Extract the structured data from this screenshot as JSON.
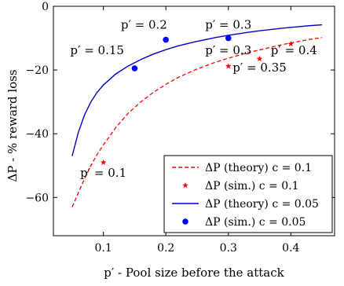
{
  "chart_data": {
    "type": "line",
    "xlabel": "p′ - Pool size before the attack",
    "ylabel": "ΔP - % reward loss",
    "xlim": [
      0.02,
      0.47
    ],
    "ylim": [
      -72,
      0
    ],
    "x_ticks": [
      0.1,
      0.2,
      0.3,
      0.4
    ],
    "x_tick_labels": [
      "0.1",
      "0.2",
      "0.3",
      "0.4"
    ],
    "y_ticks": [
      0,
      -20,
      -40,
      -60
    ],
    "y_tick_labels": [
      "0",
      "−20",
      "−40",
      "−60"
    ],
    "grid": false,
    "legend_position": "bottom-right",
    "series": [
      {
        "name": "ΔP (theory) c = 0.1",
        "kind": "line",
        "style": "dashed",
        "color": "#ff0000",
        "x": [
          0.05,
          0.06,
          0.07,
          0.08,
          0.09,
          0.1,
          0.12,
          0.14,
          0.16,
          0.18,
          0.2,
          0.22,
          0.25,
          0.28,
          0.3,
          0.33,
          0.35,
          0.38,
          0.4,
          0.43,
          0.45
        ],
        "y": [
          -63,
          -58.5,
          -54,
          -50,
          -46.5,
          -43.5,
          -38,
          -33.5,
          -30,
          -27,
          -24.5,
          -22.3,
          -19.7,
          -17.5,
          -16.3,
          -14.6,
          -13.7,
          -12.3,
          -11.5,
          -10.4,
          -9.8
        ]
      },
      {
        "name": "ΔP (sim.) c = 0.1",
        "kind": "scatter",
        "marker": "star",
        "color": "#ff0000",
        "x": [
          0.1,
          0.3,
          0.35,
          0.4
        ],
        "y": [
          -49,
          -18.8,
          -16.5,
          -11.8
        ]
      },
      {
        "name": "ΔP (theory) c = 0.05",
        "kind": "line",
        "style": "solid",
        "color": "#0000cc",
        "x": [
          0.05,
          0.06,
          0.07,
          0.08,
          0.09,
          0.1,
          0.12,
          0.14,
          0.16,
          0.18,
          0.2,
          0.22,
          0.25,
          0.28,
          0.3,
          0.33,
          0.35,
          0.38,
          0.4,
          0.43,
          0.45
        ],
        "y": [
          -47,
          -39.5,
          -34,
          -30,
          -27,
          -24.7,
          -21.2,
          -18.7,
          -16.7,
          -15,
          -13.6,
          -12.4,
          -11,
          -9.8,
          -9.1,
          -8.2,
          -7.7,
          -7,
          -6.6,
          -6.1,
          -5.8
        ]
      },
      {
        "name": "ΔP (sim.) c = 0.05",
        "kind": "scatter",
        "marker": "circle",
        "color": "#0000ff",
        "x": [
          0.15,
          0.2,
          0.3
        ],
        "y": [
          -19.5,
          -10.5,
          -10
        ]
      }
    ],
    "annotations": [
      {
        "text": "p′ = 0.1",
        "x": 0.1,
        "y": -53.5
      },
      {
        "text": "p′ = 0.15",
        "x": 0.09,
        "y": -15
      },
      {
        "text": "p′ = 0.2",
        "x": 0.165,
        "y": -7
      },
      {
        "text": "p′ = 0.3",
        "x": 0.3,
        "y": -7
      },
      {
        "text": "p′ = 0.3",
        "x": 0.3,
        "y": -15
      },
      {
        "text": "p′ = 0.4",
        "x": 0.405,
        "y": -15
      },
      {
        "text": "p′ = 0.35",
        "x": 0.35,
        "y": -20.5
      }
    ]
  }
}
